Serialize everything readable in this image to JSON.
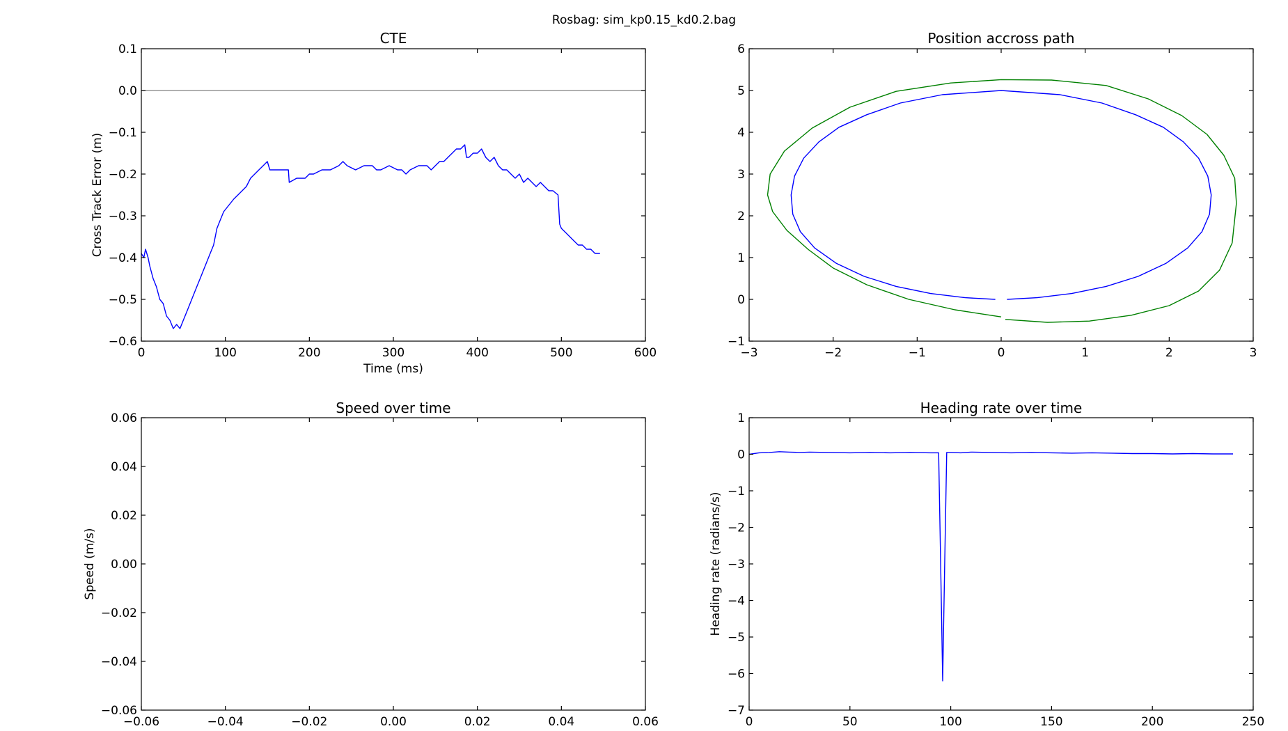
{
  "suptitle": "Rosbag: sim_kp0.15_kd0.2.bag",
  "chart_data": [
    {
      "type": "line",
      "title": "CTE",
      "xlabel": "Time (ms)",
      "ylabel": "Cross Track Error (m)",
      "xlim": [
        0,
        600
      ],
      "ylim": [
        -0.6,
        0.1
      ],
      "xticks": [
        0,
        100,
        200,
        300,
        400,
        500,
        600
      ],
      "xtick_labels": [
        "0",
        "100",
        "200",
        "300",
        "400",
        "500",
        "600"
      ],
      "yticks": [
        0.1,
        0.0,
        -0.1,
        -0.2,
        -0.3,
        -0.4,
        -0.5,
        -0.6
      ],
      "ytick_labels": [
        "0.1",
        "0.0",
        "−0.1",
        "−0.2",
        "−0.3",
        "−0.4",
        "−0.5",
        "−0.6"
      ],
      "grid": false,
      "reference_lines": [
        {
          "y": 0.0,
          "color": "#808080"
        }
      ],
      "series": [
        {
          "color": "#0000ff",
          "x": [
            0,
            3,
            5,
            8,
            10,
            14,
            18,
            22,
            26,
            30,
            34,
            38,
            42,
            46,
            50,
            54,
            58,
            62,
            66,
            70,
            74,
            78,
            82,
            86,
            90,
            94,
            98,
            102,
            106,
            110,
            115,
            120,
            125,
            130,
            135,
            140,
            145,
            150,
            153,
            160,
            170,
            175,
            176,
            185,
            195,
            200,
            205,
            215,
            225,
            235,
            240,
            245,
            255,
            265,
            275,
            280,
            285,
            295,
            305,
            310,
            315,
            320,
            330,
            340,
            345,
            350,
            355,
            360,
            365,
            370,
            375,
            380,
            385,
            387,
            390,
            395,
            400,
            405,
            410,
            415,
            420,
            425,
            430,
            435,
            440,
            445,
            450,
            455,
            460,
            465,
            470,
            475,
            480,
            485,
            490,
            496,
            498,
            500,
            505,
            510,
            515,
            520,
            525,
            530,
            535,
            540,
            546
          ],
          "y": [
            -0.39,
            -0.4,
            -0.38,
            -0.4,
            -0.42,
            -0.45,
            -0.47,
            -0.5,
            -0.51,
            -0.54,
            -0.55,
            -0.57,
            -0.56,
            -0.57,
            -0.55,
            -0.53,
            -0.51,
            -0.49,
            -0.47,
            -0.45,
            -0.43,
            -0.41,
            -0.39,
            -0.37,
            -0.33,
            -0.31,
            -0.29,
            -0.28,
            -0.27,
            -0.26,
            -0.25,
            -0.24,
            -0.23,
            -0.21,
            -0.2,
            -0.19,
            -0.18,
            -0.17,
            -0.19,
            -0.19,
            -0.19,
            -0.19,
            -0.22,
            -0.21,
            -0.21,
            -0.2,
            -0.2,
            -0.19,
            -0.19,
            -0.18,
            -0.17,
            -0.18,
            -0.19,
            -0.18,
            -0.18,
            -0.19,
            -0.19,
            -0.18,
            -0.19,
            -0.19,
            -0.2,
            -0.19,
            -0.18,
            -0.18,
            -0.19,
            -0.18,
            -0.17,
            -0.17,
            -0.16,
            -0.15,
            -0.14,
            -0.14,
            -0.13,
            -0.16,
            -0.16,
            -0.15,
            -0.15,
            -0.14,
            -0.16,
            -0.17,
            -0.16,
            -0.18,
            -0.19,
            -0.19,
            -0.2,
            -0.21,
            -0.2,
            -0.22,
            -0.21,
            -0.22,
            -0.23,
            -0.22,
            -0.23,
            -0.24,
            -0.24,
            -0.25,
            -0.32,
            -0.33,
            -0.34,
            -0.35,
            -0.36,
            -0.37,
            -0.37,
            -0.38,
            -0.38,
            -0.39,
            -0.39
          ]
        }
      ]
    },
    {
      "type": "line",
      "title": "Position accross path",
      "xlabel": "",
      "ylabel": "",
      "xlim": [
        -3,
        3
      ],
      "ylim": [
        -1,
        6
      ],
      "xticks": [
        -3,
        -2,
        -1,
        0,
        1,
        2,
        3
      ],
      "xtick_labels": [
        "−3",
        "−2",
        "−1",
        "0",
        "1",
        "2",
        "3"
      ],
      "yticks": [
        6,
        5,
        4,
        3,
        2,
        1,
        0,
        -1
      ],
      "ytick_labels": [
        "6",
        "5",
        "4",
        "3",
        "2",
        "1",
        "0",
        "−1"
      ],
      "grid": false,
      "series": [
        {
          "color": "#0000ff",
          "x": [
            0.07,
            0.43,
            0.84,
            1.25,
            1.63,
            1.96,
            2.22,
            2.39,
            2.48,
            2.5,
            2.46,
            2.35,
            2.17,
            1.93,
            1.6,
            1.2,
            0.7,
            0.0,
            -0.7,
            -1.2,
            -1.6,
            -1.93,
            -2.17,
            -2.35,
            -2.46,
            -2.5,
            -2.48,
            -2.39,
            -2.22,
            -1.96,
            -1.63,
            -1.25,
            -0.84,
            -0.43,
            -0.07
          ],
          "y": [
            0.0,
            0.04,
            0.14,
            0.31,
            0.55,
            0.86,
            1.23,
            1.62,
            2.04,
            2.5,
            2.95,
            3.38,
            3.77,
            4.12,
            4.42,
            4.7,
            4.9,
            5.0,
            4.9,
            4.7,
            4.42,
            4.12,
            3.77,
            3.38,
            2.95,
            2.5,
            2.04,
            1.62,
            1.23,
            0.86,
            0.55,
            0.31,
            0.14,
            0.04,
            0.0
          ]
        },
        {
          "color": "#008000",
          "x": [
            0.05,
            0.55,
            1.05,
            1.55,
            2.0,
            2.35,
            2.6,
            2.75,
            2.8,
            2.78,
            2.65,
            2.45,
            2.15,
            1.75,
            1.25,
            0.6,
            0.0,
            -0.6,
            -1.25,
            -1.8,
            -2.25,
            -2.58,
            -2.75,
            -2.78,
            -2.72,
            -2.55,
            -2.3,
            -2.0,
            -1.6,
            -1.1,
            -0.55,
            0.0
          ],
          "y": [
            -0.48,
            -0.55,
            -0.52,
            -0.38,
            -0.15,
            0.2,
            0.7,
            1.35,
            2.3,
            2.9,
            3.45,
            3.95,
            4.4,
            4.8,
            5.12,
            5.25,
            5.26,
            5.18,
            4.98,
            4.6,
            4.1,
            3.55,
            3.0,
            2.5,
            2.1,
            1.65,
            1.2,
            0.75,
            0.35,
            0.0,
            -0.25,
            -0.42
          ]
        }
      ]
    },
    {
      "type": "line",
      "title": "Speed over time",
      "xlabel": "",
      "ylabel": "Speed (m/s)",
      "xlim": [
        -0.06,
        0.06
      ],
      "ylim": [
        -0.06,
        0.06
      ],
      "xticks": [
        -0.06,
        -0.04,
        -0.02,
        0.0,
        0.02,
        0.04,
        0.06
      ],
      "xtick_labels": [
        "−0.06",
        "−0.04",
        "−0.02",
        "0.00",
        "0.02",
        "0.04",
        "0.06"
      ],
      "yticks": [
        0.06,
        0.04,
        0.02,
        0.0,
        -0.02,
        -0.04,
        -0.06
      ],
      "ytick_labels": [
        "0.06",
        "0.04",
        "0.02",
        "0.00",
        "−0.02",
        "−0.04",
        "−0.06"
      ],
      "grid": false,
      "series": []
    },
    {
      "type": "line",
      "title": "Heading rate over time",
      "xlabel": "",
      "ylabel": "Heading rate (radians/s)",
      "xlim": [
        0,
        250
      ],
      "ylim": [
        -7,
        1
      ],
      "xticks": [
        0,
        50,
        100,
        150,
        200,
        250
      ],
      "xtick_labels": [
        "0",
        "50",
        "100",
        "150",
        "200",
        "250"
      ],
      "yticks": [
        1,
        0,
        -1,
        -2,
        -3,
        -4,
        -5,
        -6,
        -7
      ],
      "ytick_labels": [
        "1",
        "0",
        "−1",
        "−2",
        "−3",
        "−4",
        "−5",
        "−6",
        "−7"
      ],
      "grid": false,
      "series": [
        {
          "color": "#0000ff",
          "x": [
            0,
            5,
            10,
            15,
            20,
            25,
            30,
            40,
            50,
            60,
            70,
            80,
            90,
            94,
            95,
            96,
            97,
            98,
            100,
            105,
            110,
            120,
            130,
            140,
            150,
            160,
            170,
            180,
            190,
            200,
            210,
            220,
            230,
            240
          ],
          "y": [
            0.0,
            0.04,
            0.05,
            0.07,
            0.06,
            0.05,
            0.06,
            0.05,
            0.04,
            0.05,
            0.04,
            0.05,
            0.04,
            0.04,
            -3.0,
            -6.2,
            -3.0,
            0.05,
            0.05,
            0.04,
            0.06,
            0.05,
            0.04,
            0.05,
            0.04,
            0.03,
            0.04,
            0.03,
            0.02,
            0.02,
            0.01,
            0.02,
            0.01,
            0.01
          ]
        }
      ]
    }
  ]
}
